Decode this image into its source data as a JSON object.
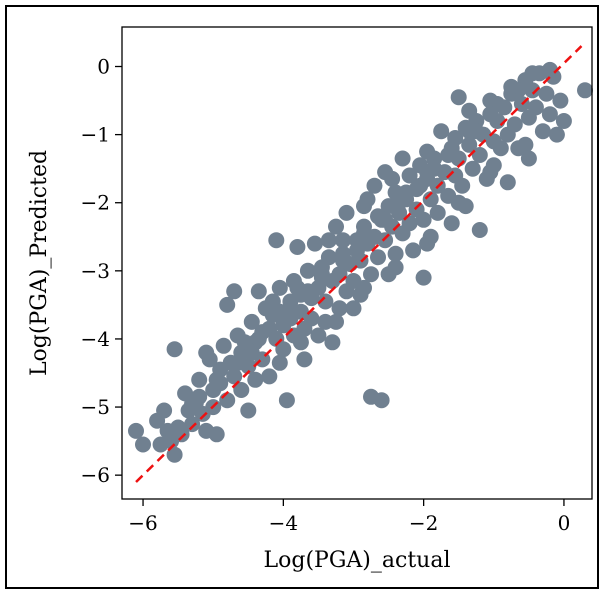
{
  "chart_data": {
    "type": "scatter",
    "title": "",
    "xlabel": "Log(PGA)_actual",
    "ylabel": "Log(PGA)_Predicted",
    "xlim": [
      -6.3,
      0.4
    ],
    "ylim": [
      -6.35,
      0.58
    ],
    "xticks": [
      -6,
      -4,
      -2,
      0
    ],
    "xtick_labels": [
      "−6",
      "−4",
      "−2",
      "0"
    ],
    "yticks": [
      -6,
      -5,
      -4,
      -3,
      -2,
      -1,
      0
    ],
    "ytick_labels": [
      "−6",
      "−5",
      "−4",
      "−3",
      "−2",
      "−1",
      "0"
    ],
    "grid": false,
    "legend": "none",
    "colors": {
      "points": "#708090",
      "reference_line": "#ee1111"
    },
    "reference_line": {
      "style": "dashed",
      "x": [
        -6.1,
        0.25
      ],
      "y": [
        -6.1,
        0.3
      ]
    },
    "series": [
      {
        "points": [
          [
            -6.1,
            -5.35
          ],
          [
            -6.0,
            -5.55
          ],
          [
            -5.8,
            -5.2
          ],
          [
            -5.75,
            -5.55
          ],
          [
            -5.7,
            -5.05
          ],
          [
            -5.65,
            -5.35
          ],
          [
            -5.6,
            -5.5
          ],
          [
            -5.55,
            -5.7
          ],
          [
            -5.55,
            -4.15
          ],
          [
            -5.5,
            -5.3
          ],
          [
            -5.45,
            -5.4
          ],
          [
            -5.4,
            -4.8
          ],
          [
            -5.35,
            -5.05
          ],
          [
            -5.3,
            -4.95
          ],
          [
            -5.3,
            -5.25
          ],
          [
            -5.2,
            -4.6
          ],
          [
            -5.2,
            -4.85
          ],
          [
            -5.15,
            -5.1
          ],
          [
            -5.1,
            -4.2
          ],
          [
            -5.1,
            -5.35
          ],
          [
            -5.05,
            -4.3
          ],
          [
            -5.0,
            -4.75
          ],
          [
            -5.0,
            -5.0
          ],
          [
            -4.95,
            -5.4
          ],
          [
            -4.9,
            -4.45
          ],
          [
            -4.9,
            -4.65
          ],
          [
            -4.85,
            -4.1
          ],
          [
            -4.8,
            -3.5
          ],
          [
            -4.8,
            -4.9
          ],
          [
            -4.75,
            -4.35
          ],
          [
            -4.7,
            -4.55
          ],
          [
            -4.7,
            -3.3
          ],
          [
            -4.65,
            -3.95
          ],
          [
            -4.6,
            -4.2
          ],
          [
            -4.6,
            -4.75
          ],
          [
            -4.55,
            -4.05
          ],
          [
            -4.5,
            -4.4
          ],
          [
            -4.5,
            -5.05
          ],
          [
            -4.45,
            -3.75
          ],
          [
            -4.4,
            -4.05
          ],
          [
            -4.4,
            -4.6
          ],
          [
            -4.35,
            -3.3
          ],
          [
            -4.3,
            -3.9
          ],
          [
            -4.3,
            -4.3
          ],
          [
            -4.25,
            -3.55
          ],
          [
            -4.2,
            -3.85
          ],
          [
            -4.2,
            -4.55
          ],
          [
            -4.15,
            -3.65
          ],
          [
            -4.1,
            -4.0
          ],
          [
            -4.1,
            -2.55
          ],
          [
            -4.05,
            -3.25
          ],
          [
            -4.0,
            -3.8
          ],
          [
            -4.0,
            -4.15
          ],
          [
            -3.95,
            -4.9
          ],
          [
            -3.9,
            -3.45
          ],
          [
            -3.9,
            -3.7
          ],
          [
            -3.85,
            -3.95
          ],
          [
            -3.8,
            -2.65
          ],
          [
            -3.8,
            -3.25
          ],
          [
            -3.75,
            -3.6
          ],
          [
            -3.7,
            -3.85
          ],
          [
            -3.7,
            -4.3
          ],
          [
            -3.65,
            -3.0
          ],
          [
            -3.6,
            -3.4
          ],
          [
            -3.6,
            -3.7
          ],
          [
            -3.55,
            -2.6
          ],
          [
            -3.5,
            -3.25
          ],
          [
            -3.5,
            -3.95
          ],
          [
            -3.45,
            -2.95
          ],
          [
            -3.4,
            -3.45
          ],
          [
            -3.4,
            -3.75
          ],
          [
            -3.35,
            -2.8
          ],
          [
            -3.3,
            -3.15
          ],
          [
            -3.3,
            -4.05
          ],
          [
            -3.25,
            -2.35
          ],
          [
            -3.2,
            -3.05
          ],
          [
            -3.2,
            -3.55
          ],
          [
            -3.15,
            -2.75
          ],
          [
            -3.1,
            -3.3
          ],
          [
            -3.1,
            -2.15
          ],
          [
            -3.05,
            -2.9
          ],
          [
            -3.0,
            -3.15
          ],
          [
            -3.0,
            -3.55
          ],
          [
            -2.95,
            -2.55
          ],
          [
            -2.9,
            -2.85
          ],
          [
            -2.9,
            -3.35
          ],
          [
            -2.85,
            -2.35
          ],
          [
            -2.8,
            -2.6
          ],
          [
            -2.8,
            -1.95
          ],
          [
            -2.75,
            -3.05
          ],
          [
            -2.75,
            -4.85
          ],
          [
            -2.7,
            -2.5
          ],
          [
            -2.7,
            -1.75
          ],
          [
            -2.65,
            -2.8
          ],
          [
            -2.6,
            -2.25
          ],
          [
            -2.6,
            -4.9
          ],
          [
            -2.55,
            -2.55
          ],
          [
            -2.55,
            -1.55
          ],
          [
            -2.5,
            -2.05
          ],
          [
            -2.5,
            -3.05
          ],
          [
            -2.45,
            -2.35
          ],
          [
            -2.4,
            -1.85
          ],
          [
            -2.4,
            -2.75
          ],
          [
            -2.35,
            -2.15
          ],
          [
            -2.3,
            -1.35
          ],
          [
            -2.3,
            -2.45
          ],
          [
            -2.25,
            -1.95
          ],
          [
            -2.2,
            -2.3
          ],
          [
            -2.2,
            -1.6
          ],
          [
            -2.15,
            -2.7
          ],
          [
            -2.1,
            -1.8
          ],
          [
            -2.1,
            -2.1
          ],
          [
            -2.05,
            -1.45
          ],
          [
            -2.0,
            -2.25
          ],
          [
            -2.0,
            -3.1
          ],
          [
            -1.95,
            -1.65
          ],
          [
            -1.9,
            -1.95
          ],
          [
            -1.9,
            -2.5
          ],
          [
            -1.85,
            -1.35
          ],
          [
            -1.8,
            -1.75
          ],
          [
            -1.8,
            -2.15
          ],
          [
            -1.75,
            -0.95
          ],
          [
            -1.7,
            -1.55
          ],
          [
            -1.65,
            -1.9
          ],
          [
            -1.6,
            -1.2
          ],
          [
            -1.6,
            -2.3
          ],
          [
            -1.55,
            -1.6
          ],
          [
            -1.5,
            -0.45
          ],
          [
            -1.5,
            -1.35
          ],
          [
            -1.45,
            -1.75
          ],
          [
            -1.4,
            -0.9
          ],
          [
            -1.4,
            -2.05
          ],
          [
            -1.35,
            -1.15
          ],
          [
            -1.3,
            -1.5
          ],
          [
            -1.25,
            -0.8
          ],
          [
            -1.2,
            -1.3
          ],
          [
            -1.2,
            -2.4
          ],
          [
            -1.15,
            -1.0
          ],
          [
            -1.1,
            -1.65
          ],
          [
            -1.05,
            -0.5
          ],
          [
            -1.0,
            -1.1
          ],
          [
            -1.0,
            -1.45
          ],
          [
            -0.95,
            -0.8
          ],
          [
            -0.9,
            -1.2
          ],
          [
            -0.85,
            -0.6
          ],
          [
            -0.8,
            -1.0
          ],
          [
            -0.8,
            -1.7
          ],
          [
            -0.75,
            -0.4
          ],
          [
            -0.7,
            -0.85
          ],
          [
            -0.65,
            -1.2
          ],
          [
            -0.6,
            -0.55
          ],
          [
            -0.55,
            -0.2
          ],
          [
            -0.5,
            -0.75
          ],
          [
            -0.5,
            -1.35
          ],
          [
            -0.45,
            -0.35
          ],
          [
            -0.4,
            -0.6
          ],
          [
            -0.35,
            -0.1
          ],
          [
            -0.3,
            -0.95
          ],
          [
            -0.25,
            -0.4
          ],
          [
            -0.2,
            -0.7
          ],
          [
            -0.15,
            -0.15
          ],
          [
            -0.1,
            -1.0
          ],
          [
            -0.05,
            -0.5
          ],
          [
            0.0,
            -0.8
          ],
          [
            0.3,
            -0.35
          ],
          [
            -3.95,
            -3.6
          ],
          [
            -3.65,
            -3.3
          ],
          [
            -3.45,
            -3.05
          ],
          [
            -3.15,
            -2.55
          ],
          [
            -2.95,
            -2.7
          ],
          [
            -2.65,
            -2.2
          ],
          [
            -2.35,
            -2.0
          ],
          [
            -2.05,
            -1.75
          ],
          [
            -1.85,
            -1.5
          ],
          [
            -1.55,
            -1.05
          ],
          [
            -1.25,
            -0.95
          ],
          [
            -0.95,
            -0.55
          ],
          [
            -0.65,
            -0.35
          ],
          [
            -4.15,
            -3.45
          ],
          [
            -3.85,
            -3.15
          ],
          [
            -3.35,
            -2.55
          ],
          [
            -2.85,
            -2.05
          ],
          [
            -2.45,
            -1.65
          ],
          [
            -1.95,
            -1.25
          ],
          [
            -1.35,
            -0.65
          ],
          [
            -4.45,
            -4.2
          ],
          [
            -4.05,
            -4.35
          ],
          [
            -3.75,
            -4.05
          ],
          [
            -3.25,
            -3.75
          ],
          [
            -2.85,
            -3.25
          ],
          [
            -2.4,
            -2.95
          ],
          [
            -1.95,
            -2.6
          ],
          [
            -1.5,
            -2.0
          ],
          [
            -1.05,
            -1.55
          ],
          [
            -0.55,
            -1.15
          ],
          [
            -5.25,
            -4.95
          ],
          [
            -4.95,
            -4.6
          ],
          [
            -4.65,
            -4.35
          ],
          [
            -4.35,
            -4.0
          ],
          [
            -4.05,
            -3.6
          ],
          [
            -3.75,
            -3.35
          ],
          [
            -3.45,
            -3.1
          ],
          [
            -3.15,
            -2.85
          ],
          [
            -2.85,
            -2.45
          ],
          [
            -2.55,
            -2.25
          ],
          [
            -2.25,
            -1.85
          ],
          [
            -1.95,
            -1.55
          ],
          [
            -1.65,
            -1.3
          ],
          [
            -1.35,
            -0.95
          ],
          [
            -1.05,
            -0.7
          ],
          [
            -0.75,
            -0.3
          ],
          [
            -0.45,
            -0.1
          ],
          [
            -0.2,
            -0.05
          ]
        ]
      }
    ]
  }
}
